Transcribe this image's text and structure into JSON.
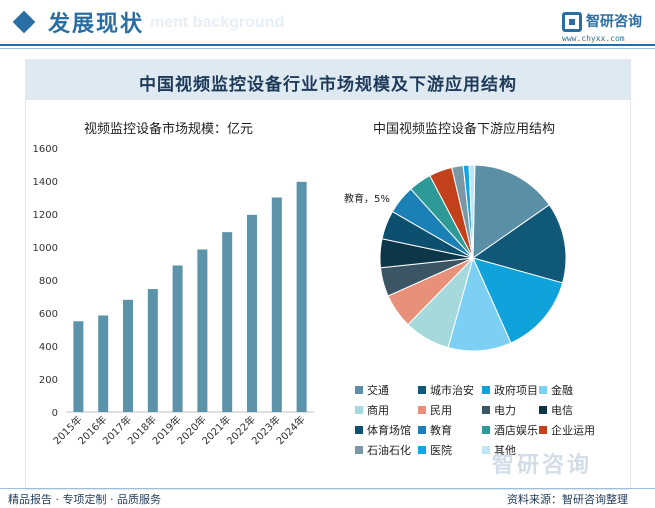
{
  "header": {
    "title": "发展现状",
    "watermark": "ment background"
  },
  "brand": {
    "name": "智研咨询",
    "url": "www.chyxx.com",
    "watermark": "智研咨询"
  },
  "panel": {
    "title": "中国视频监控设备行业市场规模及下游应用结构"
  },
  "colors": {
    "accent": "#2a6fa3",
    "bar": "#5a93aa",
    "title_bar_bg": "#dfe9f2"
  },
  "chart_data": [
    {
      "type": "bar",
      "title": "视频监控设备市场规模：亿元",
      "categories": [
        "2015年",
        "2016年",
        "2017年",
        "2018年",
        "2019年",
        "2020年",
        "2021年",
        "2022年",
        "2023年",
        "2024年"
      ],
      "values": [
        550,
        585,
        680,
        745,
        888,
        985,
        1090,
        1195,
        1300,
        1395
      ],
      "ylim": [
        0,
        1600
      ],
      "yticks": [
        0,
        200,
        400,
        600,
        800,
        1000,
        1200,
        1400,
        1600
      ],
      "grid": false
    },
    {
      "type": "pie",
      "title": "中国视频监控设备下游应用结构",
      "annotations": [
        "教育，5%"
      ],
      "legend_position": "bottom",
      "slices": [
        {
          "label": "交通",
          "value": 15,
          "color": "#5a8fa6"
        },
        {
          "label": "城市治安",
          "value": 14,
          "color": "#105878"
        },
        {
          "label": "政府项目",
          "value": 14,
          "color": "#10a3db"
        },
        {
          "label": "金融",
          "value": 11,
          "color": "#7dd0f3"
        },
        {
          "label": "商用",
          "value": 8,
          "color": "#a6d9dc"
        },
        {
          "label": "民用",
          "value": 6,
          "color": "#e8907a"
        },
        {
          "label": "电力",
          "value": 5,
          "color": "#3b5565"
        },
        {
          "label": "电信",
          "value": 5,
          "color": "#0d3748"
        },
        {
          "label": "体育场馆",
          "value": 5,
          "color": "#0c4f6e"
        },
        {
          "label": "教育",
          "value": 5,
          "color": "#1b80b6"
        },
        {
          "label": "酒店娱乐",
          "value": 4,
          "color": "#2e9a97"
        },
        {
          "label": "企业运用",
          "value": 4,
          "color": "#c2401a"
        },
        {
          "label": "石油石化",
          "value": 2,
          "color": "#7a98a6"
        },
        {
          "label": "医院",
          "value": 1,
          "color": "#0fa6e6"
        },
        {
          "label": "其他",
          "value": 1,
          "color": "#bfe6f6"
        }
      ]
    }
  ],
  "footer": {
    "left": "精品报告 · 专项定制 · 品质服务",
    "right": "资料来源：智研咨询整理"
  }
}
